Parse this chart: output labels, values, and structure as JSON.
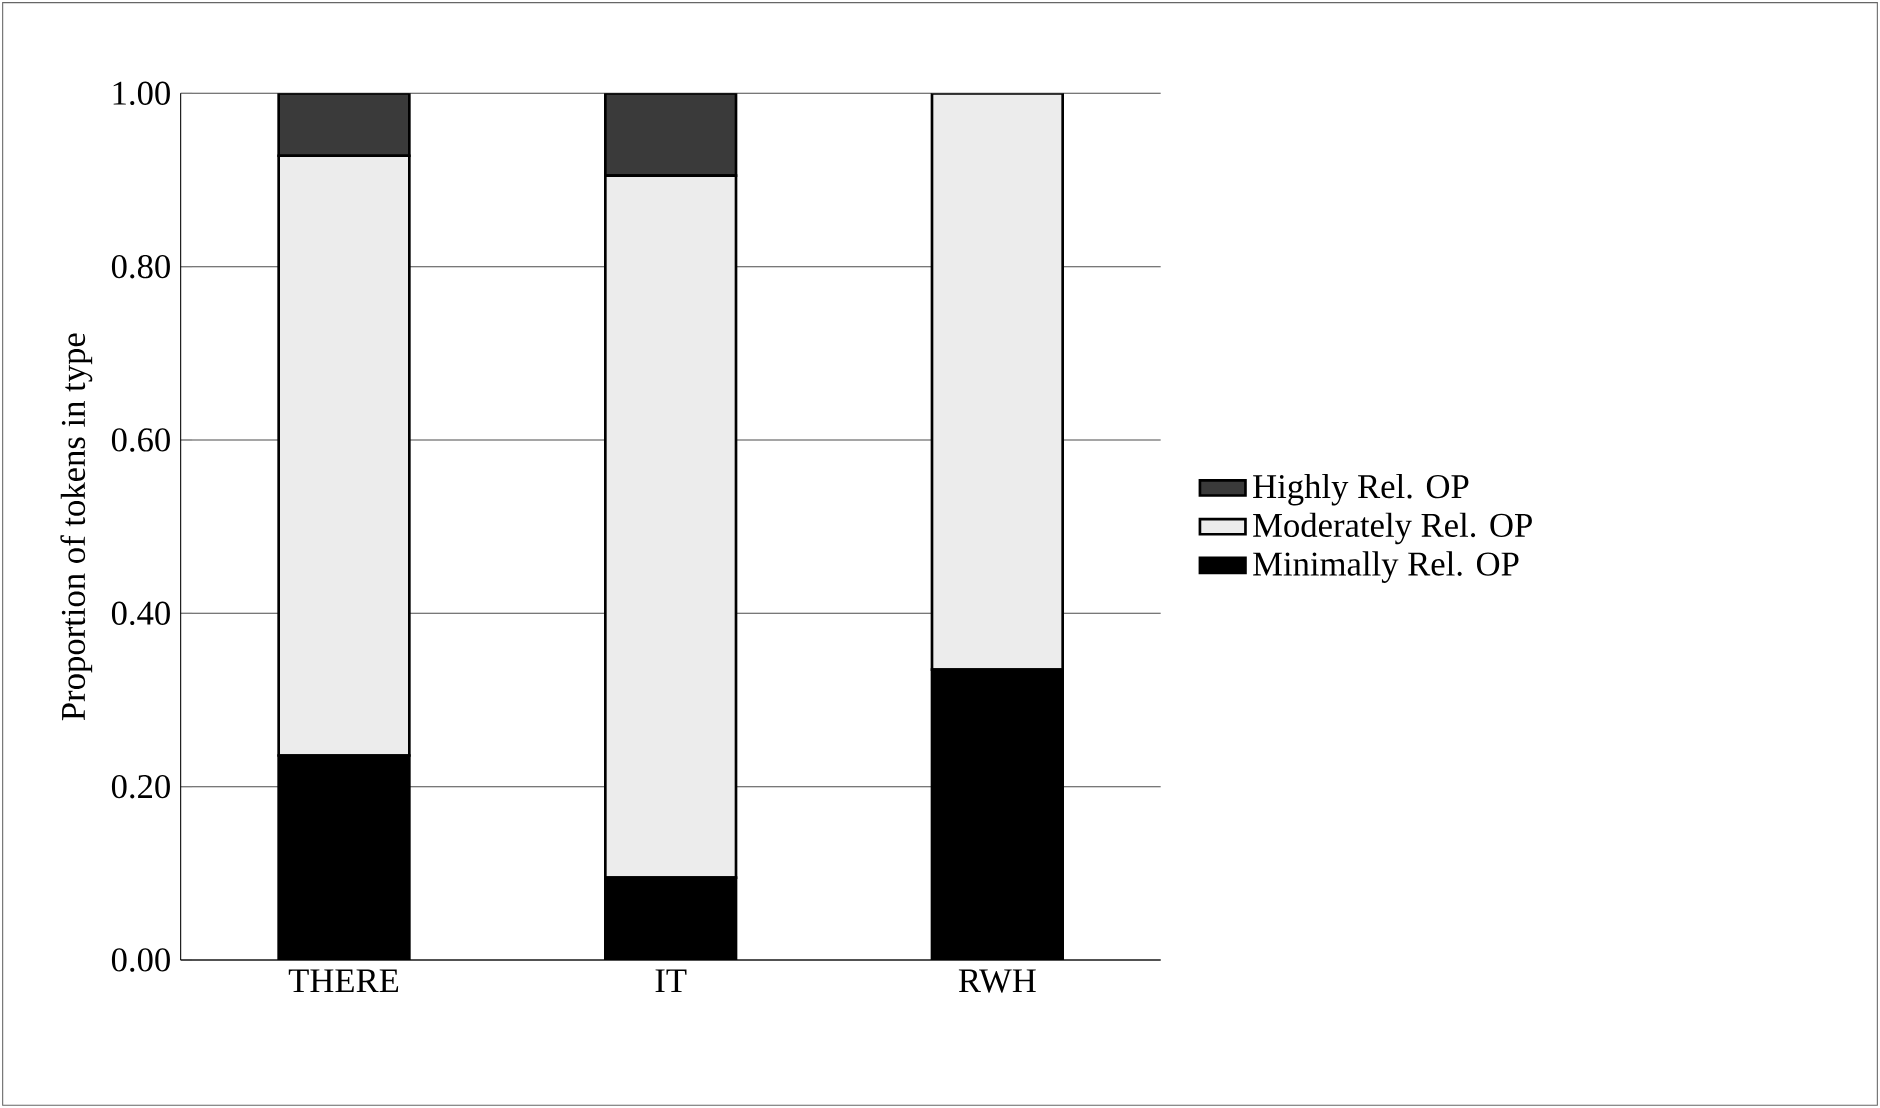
{
  "chart_data": {
    "type": "bar",
    "stacked": true,
    "ylabel": "Proportion of tokens in type",
    "categories": [
      "THERE",
      "IT",
      "RWH"
    ],
    "series": [
      {
        "name": "Minimally Rel. OP",
        "color": "#000000",
        "values": [
          0.236,
          0.095,
          0.335
        ]
      },
      {
        "name": "Moderately Rel. OP",
        "color": "#ececec",
        "values": [
          0.692,
          0.81,
          0.665
        ]
      },
      {
        "name": "Highly Rel. OP",
        "color": "#3a3a3a",
        "values": [
          0.072,
          0.095,
          0
        ]
      }
    ],
    "ylim": [
      0,
      1
    ],
    "yticks": [
      {
        "value": 0,
        "label": "0.00"
      },
      {
        "value": 0.2,
        "label": "0.20"
      },
      {
        "value": 0.4,
        "label": "0.40"
      },
      {
        "value": 0.6,
        "label": "0.60"
      },
      {
        "value": 0.8,
        "label": "0.80"
      },
      {
        "value": 1,
        "label": "1.00"
      }
    ],
    "grid": "y",
    "legend": "right"
  }
}
